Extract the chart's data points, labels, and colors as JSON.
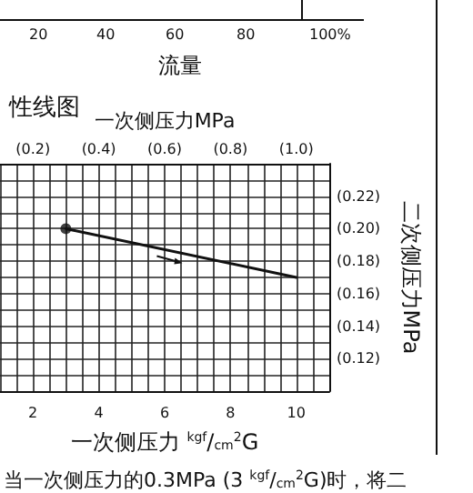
{
  "chart_data": {
    "type": "line",
    "title": "性线图",
    "xlabel": "一次侧压力 $^{kgf}$/$_{cm}$$^{2}$G",
    "x2label": "一次侧压力MPa",
    "ylabel": "二次侧压力MPa",
    "annotations": [
      "20",
      "40",
      "60",
      "80",
      "100%",
      "流量",
      "当一次侧压力的0.3MPa (3 $^{kgf}$/$_{cm}$$^{2}$G)时，将二"
    ],
    "series": [
      {
        "color": "#111111",
        "values": [
          0.2,
          0.17
        ],
        "marker": "none"
      },
      {
        "type": "scatter",
        "color": "#111111",
        "values": [
          0.2,
          null
        ],
        "marker": "circle"
      }
    ],
    "x": [
      3,
      10
    ],
    "xlim": [
      1,
      11
    ],
    "xticks": [
      2,
      4,
      6,
      8,
      10
    ],
    "x2lim": [
      0.1,
      1.1
    ],
    "x2ticks": [
      {
        "value": 0.2,
        "label": "(0.2)"
      },
      {
        "value": 0.4,
        "label": "(0.4)"
      },
      {
        "value": 0.6,
        "label": "(0.6)"
      },
      {
        "value": 0.8,
        "label": "(0.8)"
      },
      {
        "value": 1.0,
        "label": "(1.0)"
      }
    ],
    "ylim": [
      0.1,
      0.24
    ],
    "yticks": [
      {
        "value": 0.12,
        "label": "(0.12)"
      },
      {
        "value": 0.14,
        "label": "(0.14)"
      },
      {
        "value": 0.16,
        "label": "(0.16)"
      },
      {
        "value": 0.18,
        "label": "(0.18)"
      },
      {
        "value": 0.2,
        "label": "(0.20)"
      },
      {
        "value": 0.22,
        "label": "(0.22)"
      }
    ],
    "grid": true
  }
}
